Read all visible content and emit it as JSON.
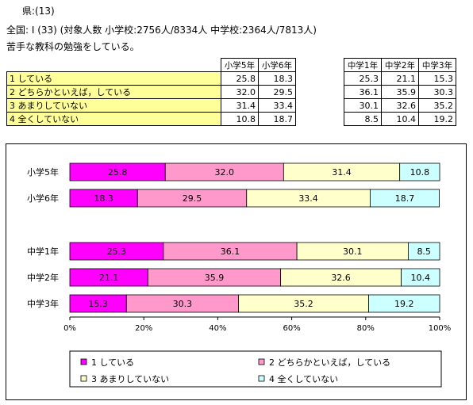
{
  "header": {
    "line1": "県:(13)",
    "line2": "全国: I (33) (対象人数 小学校:2756人/8334人 中学校:2364人/7813人)",
    "line3": "苦手な教科の勉強をしている。"
  },
  "table": {
    "row_labels": [
      "1 している",
      "2 どちらかといえば，している",
      "3 あまりしていない",
      "4 全くしていない"
    ],
    "elementary": {
      "columns": [
        "小学5年",
        "小学6年"
      ],
      "values": [
        [
          "25.8",
          "18.3"
        ],
        [
          "32.0",
          "29.5"
        ],
        [
          "31.4",
          "33.4"
        ],
        [
          "10.8",
          "18.7"
        ]
      ]
    },
    "junior": {
      "columns": [
        "中学1年",
        "中学2年",
        "中学3年"
      ],
      "values": [
        [
          "25.3",
          "21.1",
          "15.3"
        ],
        [
          "36.1",
          "35.9",
          "30.3"
        ],
        [
          "30.1",
          "32.6",
          "35.2"
        ],
        [
          "8.5",
          "10.4",
          "19.2"
        ]
      ]
    }
  },
  "chart_data": {
    "type": "bar",
    "orientation": "horizontal-stacked-100",
    "categories": [
      "小学5年",
      "小学6年",
      "中学1年",
      "中学2年",
      "中学3年"
    ],
    "series": [
      {
        "name": "1 している",
        "color": "#ff00ff",
        "values": [
          25.8,
          18.3,
          25.3,
          21.1,
          15.3
        ]
      },
      {
        "name": "2 どちらかといえば，している",
        "color": "#ff99cc",
        "values": [
          32.0,
          29.5,
          36.1,
          35.9,
          30.3
        ]
      },
      {
        "name": "3 あまりしていない",
        "color": "#ffffcc",
        "values": [
          31.4,
          33.4,
          30.1,
          32.6,
          35.2
        ]
      },
      {
        "name": "4 全くしていない",
        "color": "#ccffff",
        "values": [
          10.8,
          18.7,
          8.5,
          10.4,
          19.2
        ]
      }
    ],
    "x_ticks": [
      "0%",
      "20%",
      "40%",
      "60%",
      "80%",
      "100%"
    ],
    "xlim": [
      0,
      100
    ],
    "grid": false,
    "legend_position": "bottom"
  }
}
